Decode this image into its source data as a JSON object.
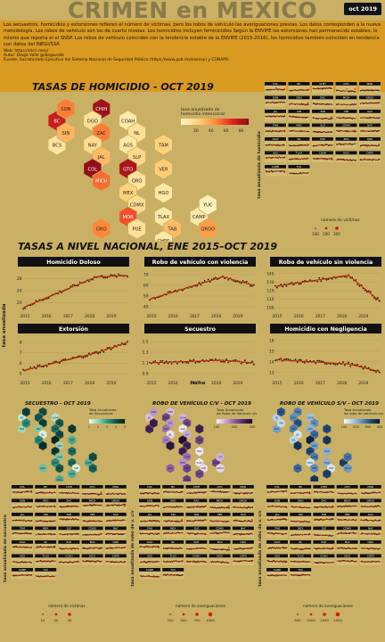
{
  "header": {
    "title": "CRIMEN en MEXICO",
    "badge": "oct 2019"
  },
  "intro": {
    "paragraph": "Los secuestros, homicidios y extorsiones refieren el número de víctimas, pero los robos de vehículo las averiguaciones previas. Los datos corresponden a la nueva metodología. Los robos de vehículo son los de cuarto nivelas. Los homicidios incluyen feminicidios Según la ENVIPE las extorsiones han permanecido estables, lo mismo que reporta el el SNSP. Los robos de vehículo coinciden con la tendencia estable de la ENVIPE (2015-2016), los homicidios también coinciden en tendencia con datos del INEGI/SSA",
    "web": "Web: https://elcri.men/",
    "author": "Autor: Diego Valle @diegovalle",
    "source": "Fuente: Secretariado Ejecutivo del Sistema Nacional de Seguridad Pública (https://www.gob.mx/sesnsp) y CONAPO"
  },
  "colors": {
    "background": "#c9b064",
    "intro_bg": "#d99a22",
    "trend": "#cc2200",
    "points": "#1a1a1a",
    "panel_bg": "#d4bc74"
  },
  "homicide_map": {
    "title": "TASAS DE HOMICIDIO - OCT 2019",
    "legend_title": "tasa anualizada de homicidio intencional",
    "legend_ticks": [
      "20",
      "40",
      "60",
      "80"
    ],
    "scale_max": 90,
    "states": [
      {
        "name": "BC",
        "value": 75,
        "c": 0,
        "r": 1
      },
      {
        "name": "SON",
        "value": 48,
        "c": 1,
        "r": 0
      },
      {
        "name": "CHIH",
        "value": 85,
        "c": 3,
        "r": 0
      },
      {
        "name": "DGO",
        "value": 14,
        "c": 2,
        "r": 1
      },
      {
        "name": "COAH",
        "value": 8,
        "c": 4,
        "r": 1
      },
      {
        "name": "BCS",
        "value": 12,
        "c": 0,
        "r": 3
      },
      {
        "name": "SIN",
        "value": 32,
        "c": 1,
        "r": 2
      },
      {
        "name": "ZAC",
        "value": 48,
        "c": 3,
        "r": 2
      },
      {
        "name": "NL",
        "value": 14,
        "c": 5,
        "r": 2
      },
      {
        "name": "NAY",
        "value": 16,
        "c": 2,
        "r": 3
      },
      {
        "name": "AGS",
        "value": 10,
        "c": 4,
        "r": 3
      },
      {
        "name": "TAM",
        "value": 22,
        "c": 6,
        "r": 3
      },
      {
        "name": "JAL",
        "value": 30,
        "c": 3,
        "r": 4
      },
      {
        "name": "SLP",
        "value": 18,
        "c": 5,
        "r": 4
      },
      {
        "name": "GTO",
        "value": 82,
        "c": 4,
        "r": 5
      },
      {
        "name": "COL",
        "value": 88,
        "c": 2,
        "r": 5
      },
      {
        "name": "VER",
        "value": 24,
        "c": 6,
        "r": 5
      },
      {
        "name": "QRO",
        "value": 12,
        "c": 5,
        "r": 6
      },
      {
        "name": "MICH",
        "value": 52,
        "c": 3,
        "r": 6
      },
      {
        "name": "MEX",
        "value": 22,
        "c": 4,
        "r": 7
      },
      {
        "name": "HGO",
        "value": 10,
        "c": 6,
        "r": 7
      },
      {
        "name": "CDMX",
        "value": 16,
        "c": 5,
        "r": 8
      },
      {
        "name": "MOR",
        "value": 58,
        "c": 4,
        "r": 9
      },
      {
        "name": "TLAX",
        "value": 10,
        "c": 6,
        "r": 9
      },
      {
        "name": "GRO",
        "value": 46,
        "c": 3,
        "r": 10
      },
      {
        "name": "PUE",
        "value": 14,
        "c": 5,
        "r": 10
      },
      {
        "name": "TAB",
        "value": 30,
        "c": 7,
        "r": 10
      },
      {
        "name": "CAMP",
        "value": 9,
        "c": 8,
        "r": 9
      },
      {
        "name": "YUC",
        "value": 3,
        "c": 9,
        "r": 8
      },
      {
        "name": "QROO",
        "value": 40,
        "c": 9,
        "r": 10
      },
      {
        "name": "CHPS",
        "value": 9,
        "c": 6,
        "r": 11
      },
      {
        "name": "OAX",
        "value": 24,
        "c": 5,
        "r": 12
      }
    ]
  },
  "state_small_multiples": {
    "labels": [
      "COL",
      "BC",
      "CHIH",
      "GTO",
      "MOR",
      "SON",
      "GRO",
      "ZAC",
      "MICH",
      "QROO",
      "JAL",
      "SIN",
      "TAB",
      "VER",
      "OAX",
      "TAM",
      "MEX",
      "SLP",
      "CDMX",
      "NAY",
      "DGO",
      "NL",
      "PUE",
      "BCS",
      "QRO",
      "AGS",
      "TLAX",
      "COAH",
      "HGO",
      "CHPS",
      "CAMP",
      "YUC"
    ],
    "ylabel": "tasa anualizada de homicidio",
    "size_legend_title": "número de víctimas",
    "size_legend_ticks": [
      "100",
      "200",
      "300"
    ]
  },
  "national": {
    "title": "TASAS A NIVEL NACIONAL, ENE 2015–OCT 2019",
    "ylabel": "tasa anualizada",
    "xlabel": "fecha",
    "x_ticks": [
      "2015",
      "2016",
      "2017",
      "2018",
      "2019"
    ],
    "panels": [
      {
        "title": "Homicidio Doloso",
        "y_ticks": [
          "20",
          "24",
          "28"
        ],
        "ylim": [
          17,
          31
        ],
        "start": 18.5,
        "peak": 28.5,
        "end": 29
      },
      {
        "title": "Robo de vehículo con violencia",
        "y_ticks": [
          "40",
          "50",
          "60",
          "70"
        ],
        "ylim": [
          35,
          75
        ],
        "start": 47,
        "peak": 68,
        "end": 60
      },
      {
        "title": "Robo de vehículo sin violencia",
        "y_ticks": [
          "100",
          "110",
          "120",
          "130",
          "140"
        ],
        "ylim": [
          95,
          145
        ],
        "start": 125,
        "peak": 138,
        "end": 108
      },
      {
        "title": "Extorsión",
        "y_ticks": [
          "5",
          "6",
          "7",
          "8"
        ],
        "ylim": [
          4.5,
          8.6
        ],
        "start": 5.3,
        "peak": 7,
        "end": 8
      },
      {
        "title": "Secuestro",
        "y_ticks": [
          "0.9",
          "1.1",
          "1.3",
          "1.5"
        ],
        "ylim": [
          0.8,
          1.6
        ],
        "start": 1.1,
        "peak": 1.15,
        "end": 1.1
      },
      {
        "title": "Homicidio con Negligencia",
        "y_ticks": [
          "13",
          "14",
          "15",
          "16"
        ],
        "ylim": [
          12.4,
          16.4
        ],
        "start": 14.2,
        "peak": 13.8,
        "end": 13.1
      }
    ]
  },
  "small_maps": [
    {
      "title": "SECUESTRO - OCT 2019",
      "legend_title": "Tasa Anualizada de Secuestros",
      "legend_ticks": [
        "1",
        "2",
        "3",
        "4",
        "5"
      ],
      "ramp": [
        "#e8f5ea",
        "#8fd0b0",
        "#2b9b8a",
        "#105850",
        "#062420"
      ]
    },
    {
      "title": "ROBO DE VEHÍCULO C/V - OCT 2019",
      "legend_title": "Tasa Anualizada de Robo de Vehículo c/v",
      "legend_ticks": [
        "100",
        "200",
        "300"
      ],
      "ramp": [
        "#f4ecf7",
        "#c9a6d8",
        "#8c5ca8",
        "#502a6e",
        "#1e0a2c"
      ]
    },
    {
      "title": "ROBO DE VEHÍCULO S/V - OCT 2019",
      "legend_title": "Tasa Anualizada de robo de vehículo s/v",
      "legend_ticks": [
        "100",
        "200",
        "300",
        "400"
      ],
      "ramp": [
        "#eaf2fb",
        "#a9c9ea",
        "#5c8fc4",
        "#234f86",
        "#081c3a"
      ]
    }
  ],
  "bottom_multiples": [
    {
      "ylabel": "tasa anualizada de secuestro",
      "size_legend_title": "número de víctimas",
      "size_legend_ticks": [
        "10",
        "20",
        "30"
      ]
    },
    {
      "ylabel": "tasa anualizada de robo de v. c/v",
      "size_legend_title": "número de averiguaciones",
      "size_legend_ticks": [
        "250",
        "500",
        "750",
        "1000"
      ]
    },
    {
      "ylabel": "tasa anualizada de robo de v. s/v",
      "size_legend_title": "número de averiguaciones",
      "size_legend_ticks": [
        "500",
        "1000",
        "1500",
        "2000"
      ]
    }
  ],
  "chart_data": [
    {
      "type": "heatmap",
      "title": "TASAS DE HOMICIDIO - OCT 2019",
      "note": "hexagonal tile map of Mexican states",
      "values_ref": "homicide_map.states"
    },
    {
      "type": "line",
      "title": "Homicidio Doloso",
      "x": [
        "2015",
        "2016",
        "2017",
        "2018",
        "2019"
      ],
      "series": [
        {
          "values": [
            19,
            20.5,
            24,
            27.5,
            28.5
          ]
        }
      ]
    },
    {
      "type": "line",
      "title": "Robo de vehículo con violencia",
      "x": [
        "2015",
        "2016",
        "2017",
        "2018",
        "2019"
      ],
      "series": [
        {
          "values": [
            47,
            50,
            60,
            67,
            62
          ]
        }
      ]
    },
    {
      "type": "line",
      "title": "Robo de vehículo sin violencia",
      "x": [
        "2015",
        "2016",
        "2017",
        "2018",
        "2019"
      ],
      "series": [
        {
          "values": [
            126,
            130,
            136,
            131,
            112
          ]
        }
      ]
    },
    {
      "type": "line",
      "title": "Extorsión",
      "x": [
        "2015",
        "2016",
        "2017",
        "2018",
        "2019"
      ],
      "series": [
        {
          "values": [
            5.3,
            5.8,
            6.6,
            6.9,
            7.8
          ]
        }
      ]
    },
    {
      "type": "line",
      "title": "Secuestro",
      "x": [
        "2015",
        "2016",
        "2017",
        "2018",
        "2019"
      ],
      "series": [
        {
          "values": [
            1.1,
            1.05,
            1.1,
            1.2,
            1.1
          ]
        }
      ]
    },
    {
      "type": "line",
      "title": "Homicidio con Negligencia",
      "x": [
        "2015",
        "2016",
        "2017",
        "2018",
        "2019"
      ],
      "series": [
        {
          "values": [
            14.3,
            14.1,
            13.9,
            13.6,
            13.2
          ]
        }
      ]
    }
  ]
}
